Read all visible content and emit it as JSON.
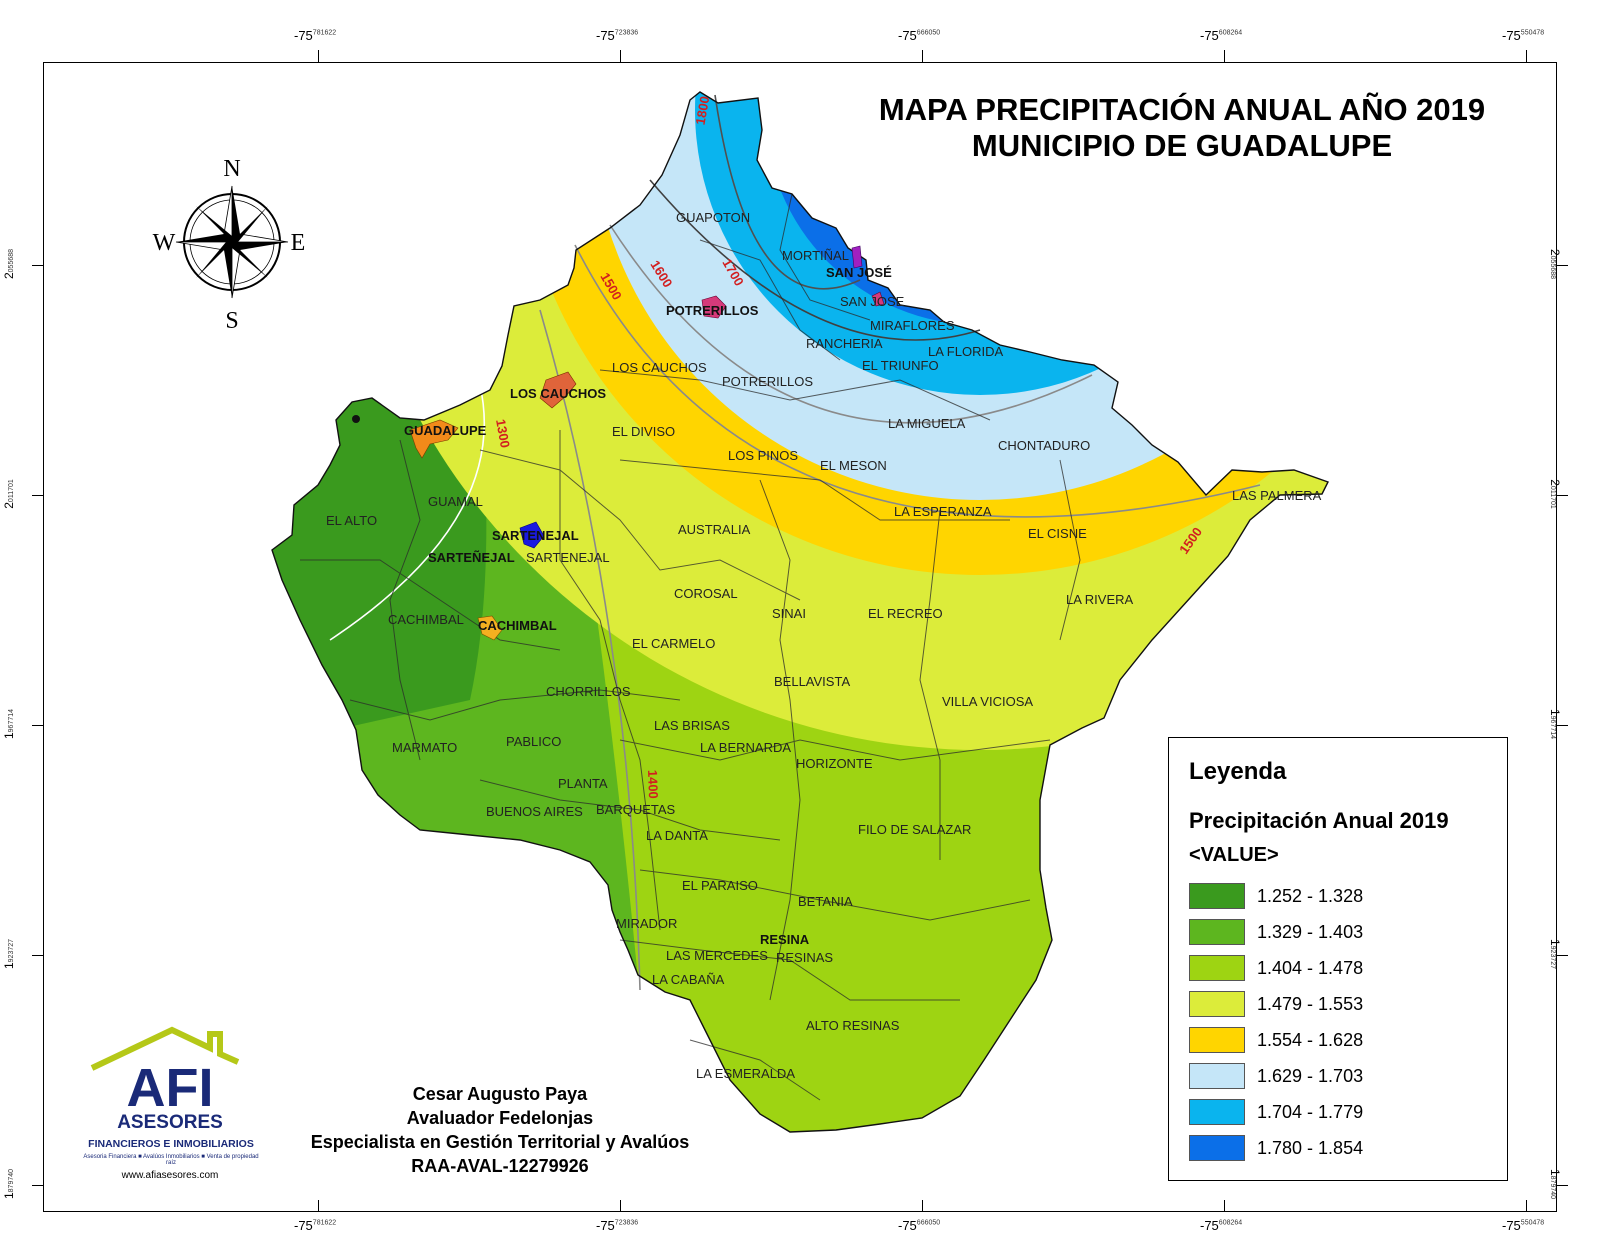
{
  "title_lines": [
    "MAPA PRECIPITACIÓN ANUAL AÑO 2019",
    "MUNICIPIO DE GUADALUPE"
  ],
  "coords": {
    "top": [
      {
        "big": "-75",
        "small": "781622"
      },
      {
        "big": "-75",
        "small": "723836"
      },
      {
        "big": "-75",
        "small": "666050"
      },
      {
        "big": "-75",
        "small": "608264"
      },
      {
        "big": "-75",
        "small": "550478"
      }
    ],
    "left": [
      {
        "big": "2",
        "small": "055688"
      },
      {
        "big": "2",
        "small": "011701"
      },
      {
        "big": "1",
        "small": "967714"
      },
      {
        "big": "1",
        "small": "923727"
      },
      {
        "big": "1",
        "small": "879740"
      }
    ]
  },
  "compass": {
    "n": "N",
    "s": "S",
    "e": "E",
    "w": "W"
  },
  "legend": {
    "heading": "Leyenda",
    "subtitle": "Precipitación Anual 2019",
    "value_label": "<VALUE>",
    "classes": [
      {
        "range": "1.252 - 1.328",
        "color": "#3a9a1e"
      },
      {
        "range": "1.329 - 1.403",
        "color": "#5db61f"
      },
      {
        "range": "1.404 - 1.478",
        "color": "#9ed412"
      },
      {
        "range": "1.479 - 1.553",
        "color": "#dcec3a"
      },
      {
        "range": "1.554 - 1.628",
        "color": "#ffd500"
      },
      {
        "range": "1.629 - 1.703",
        "color": "#c5e6f8"
      },
      {
        "range": "1.704 - 1.779",
        "color": "#0ab4ee"
      },
      {
        "range": "1.780 - 1.854",
        "color": "#0b6fe8"
      }
    ]
  },
  "isolines": [
    "1300",
    "1400",
    "1500",
    "1600",
    "1700",
    "1800",
    "1500"
  ],
  "places": {
    "guapoton": "GUAPOTON",
    "mortinal": "MORTIÑAL",
    "sanjose_town": "SAN JOSÉ",
    "sanjose": "SAN JOSE",
    "potrerillos_town": "POTRERILLOS",
    "miraflores": "MIRAFLORES",
    "rancheria": "RANCHERIA",
    "laflorida": "LA FLORIDA",
    "eltriunfo": "EL TRIUNFO",
    "loscauchos": "LOS CAUCHOS",
    "loscauchos_town": "LOS CAUCHOS",
    "potrerillos": "POTRERILLOS",
    "lamiguela": "LA MIGUELA",
    "guadalupe_town": "GUADALUPE",
    "eldiviso": "EL DIVISO",
    "lospinos": "LOS PINOS",
    "chontaduro": "CHONTADURO",
    "elmeson": "EL MESON",
    "guamal": "GUAMAL",
    "laesperanza": "LA ESPERANZA",
    "laspalmeras": "LAS PALMERA",
    "elalto": "EL ALTO",
    "sartenejal_town": "SARTENEJAL",
    "australia": "AUSTRALIA",
    "elcisne": "EL CISNE",
    "sartenejal1": "SARTEÑEJAL",
    "sartenejal2": "SARTENEJAL",
    "corosal": "COROSAL",
    "larivera": "LA RIVERA",
    "sinai": "SINAI",
    "elrecreo": "EL RECREO",
    "cachimbal": "CACHIMBAL",
    "cachimbal_town": "CACHIMBAL",
    "elcarmelo": "EL CARMELO",
    "bellavista": "BELLAVISTA",
    "chorrillos": "CHORRILLOS",
    "villaviciosa": "VILLA VICIOSA",
    "lasbrisas": "LAS BRISAS",
    "pablico": "PABLICO",
    "marmato": "MARMATO",
    "labernarda": "LA BERNARDA",
    "horizonte": "HORIZONTE",
    "planta": "PLANTA",
    "buenosaires": "BUENOS AIRES",
    "barquetas": "BARQUETAS",
    "filo": "FILO DE SALAZAR",
    "ladanta": "LA DANTA",
    "elparaiso": "EL PARAISO",
    "betania": "BETANIA",
    "mirador": "MIRADOR",
    "resina_town": "RESINA",
    "lasmercedes": "LAS MERCEDES",
    "resinas": "RESINAS",
    "lacabana": "LA CABAÑA",
    "altoresinas": "ALTO RESINAS",
    "laesmeralda": "LA ESMERALDA"
  },
  "credits": [
    "Cesar Augusto Paya",
    "Avaluador Fedelonjas",
    "Especialista en Gestión Territorial y Avalúos",
    "RAA-AVAL-12279926"
  ],
  "logo": {
    "mark": "AFI",
    "name": "ASESORES",
    "sub": "FINANCIEROS E INMOBILIARIOS",
    "tagline": "Asesoria Financiera ■ Avalúos Inmobiliarios ■ Venta de propiedad raíz",
    "url": "www.afiasesores.com"
  }
}
